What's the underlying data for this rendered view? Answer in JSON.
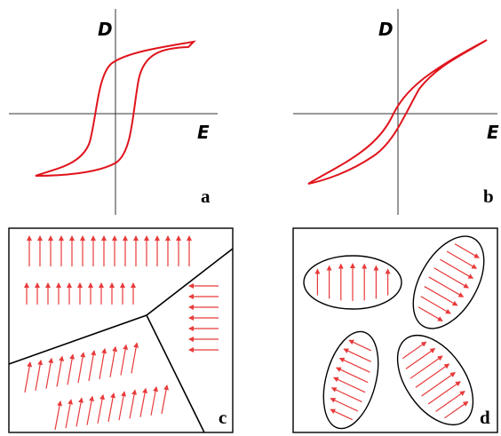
{
  "panels": [
    {
      "label": "a",
      "y_axis": "D",
      "x_axis": "E"
    },
    {
      "label": "b",
      "y_axis": "D",
      "x_axis": "E"
    },
    {
      "label": "c"
    },
    {
      "label": "d"
    }
  ]
}
